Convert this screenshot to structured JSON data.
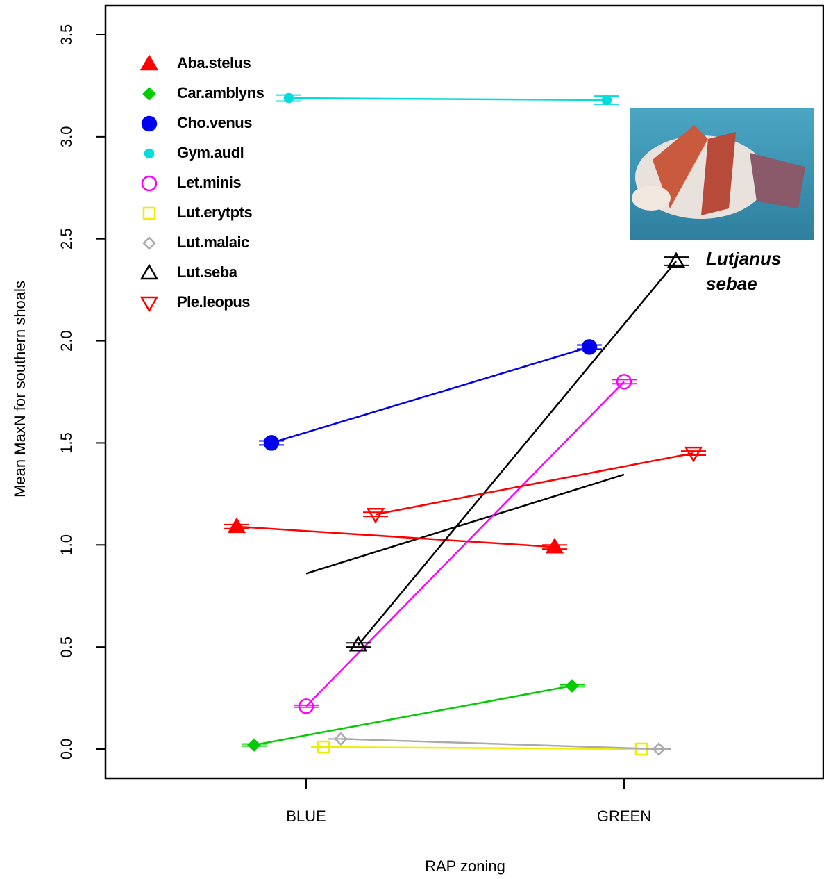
{
  "chart_data": {
    "type": "line",
    "xlabel": "RAP zoning",
    "ylabel": "Mean MaxN for southern shoals",
    "categories": [
      "BLUE",
      "GREEN"
    ],
    "ylim": [
      -0.143,
      3.643
    ],
    "yticks": [
      {
        "value": 0,
        "label": "0.0"
      },
      0.5,
      {
        "value": 1,
        "label": "1.0"
      },
      1.5,
      {
        "value": 2,
        "label": "2.0"
      },
      2.5,
      {
        "value": 3,
        "label": "3.0"
      },
      3.5
    ],
    "legend": "top-left",
    "series": [
      {
        "name": "Aba.stelus",
        "color": "#ff0000",
        "marker": "triangle",
        "filled": true,
        "values": [
          1.09,
          0.99
        ],
        "errors": [
          0.01,
          0.01
        ]
      },
      {
        "name": "Car.amblyns",
        "color": "#00cc00",
        "marker": "diamond",
        "filled": true,
        "values": [
          0.02,
          0.31
        ],
        "errors": [
          0.005,
          0.005
        ]
      },
      {
        "name": "Cho.venus",
        "color": "#0000ee",
        "marker": "circle",
        "filled": true,
        "values": [
          1.5,
          1.97
        ],
        "errors": [
          0.01,
          0.01
        ]
      },
      {
        "name": "Gym.audl",
        "color": "#00dddd",
        "marker": "dot",
        "filled": true,
        "values": [
          3.19,
          3.18
        ],
        "errors": [
          0.015,
          0.02
        ]
      },
      {
        "name": "Let.minis",
        "color": "#ff00ff",
        "marker": "circle",
        "filled": false,
        "values": [
          0.21,
          1.8
        ],
        "errors": [
          0.005,
          0.01
        ]
      },
      {
        "name": "Lut.erytpts",
        "color": "#eeee00",
        "marker": "square",
        "filled": false,
        "values": [
          0.01,
          0.0
        ],
        "errors": [
          0.0,
          0.0
        ]
      },
      {
        "name": "Lut.malaic",
        "color": "#aaaaaa",
        "marker": "diamond",
        "filled": false,
        "values": [
          0.05,
          0.0
        ],
        "errors": [
          0.0,
          0.0
        ]
      },
      {
        "name": "Lut.seba",
        "color": "#000000",
        "marker": "triangle",
        "filled": false,
        "values": [
          0.51,
          2.39
        ],
        "errors": [
          0.01,
          0.02
        ]
      },
      {
        "name": "Ple.leopus",
        "color": "#ff0000",
        "marker": "triangle-down",
        "filled": false,
        "values": [
          1.15,
          1.45
        ],
        "errors": [
          0.01,
          0.01
        ]
      }
    ],
    "trend": {
      "color": "#000000",
      "values": [
        0.86,
        1.345
      ]
    },
    "annotation": [
      "Lutjanus",
      "sebae"
    ]
  }
}
